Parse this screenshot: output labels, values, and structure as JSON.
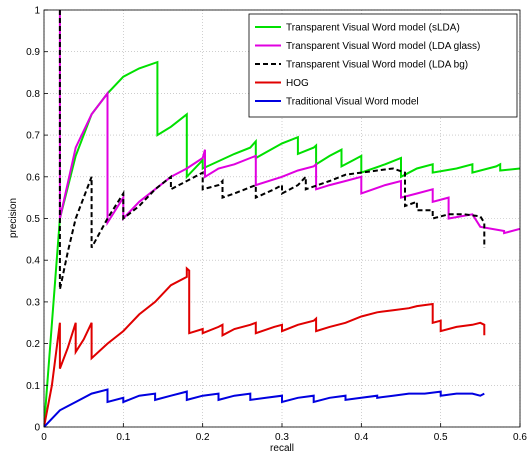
{
  "chart_data": {
    "type": "line",
    "title": "",
    "xlabel": "recall",
    "ylabel": "precision",
    "xlim": [
      0,
      0.6
    ],
    "ylim": [
      0,
      1
    ],
    "grid": true,
    "legend_position": "top-right",
    "x_ticks": [
      "0",
      "0.1",
      "0.2",
      "0.3",
      "0.4",
      "0.5",
      "0.6"
    ],
    "y_ticks": [
      "0",
      "0.1",
      "0.2",
      "0.3",
      "0.4",
      "0.5",
      "0.6",
      "0.7",
      "0.8",
      "0.9",
      "1"
    ],
    "series": [
      {
        "name": "Transparent Visual Word model (sLDA)",
        "color": "#00e000",
        "dash": "solid",
        "points": [
          [
            0,
            0
          ],
          [
            0.02,
            0.5
          ],
          [
            0.04,
            0.65
          ],
          [
            0.06,
            0.75
          ],
          [
            0.08,
            0.8
          ],
          [
            0.1,
            0.84
          ],
          [
            0.12,
            0.86
          ],
          [
            0.143,
            0.875
          ],
          [
            0.143,
            0.7
          ],
          [
            0.16,
            0.72
          ],
          [
            0.18,
            0.75
          ],
          [
            0.18,
            0.6
          ],
          [
            0.2,
            0.64
          ],
          [
            0.2,
            0.62
          ],
          [
            0.24,
            0.655
          ],
          [
            0.26,
            0.67
          ],
          [
            0.267,
            0.685
          ],
          [
            0.267,
            0.645
          ],
          [
            0.3,
            0.68
          ],
          [
            0.32,
            0.695
          ],
          [
            0.32,
            0.655
          ],
          [
            0.34,
            0.67
          ],
          [
            0.343,
            0.675
          ],
          [
            0.343,
            0.63
          ],
          [
            0.36,
            0.65
          ],
          [
            0.375,
            0.665
          ],
          [
            0.375,
            0.625
          ],
          [
            0.39,
            0.64
          ],
          [
            0.4,
            0.65
          ],
          [
            0.4,
            0.61
          ],
          [
            0.43,
            0.63
          ],
          [
            0.45,
            0.645
          ],
          [
            0.45,
            0.6
          ],
          [
            0.47,
            0.62
          ],
          [
            0.49,
            0.63
          ],
          [
            0.49,
            0.61
          ],
          [
            0.52,
            0.62
          ],
          [
            0.54,
            0.63
          ],
          [
            0.54,
            0.61
          ],
          [
            0.57,
            0.625
          ],
          [
            0.575,
            0.63
          ],
          [
            0.575,
            0.615
          ],
          [
            0.6,
            0.62
          ]
        ]
      },
      {
        "name": "Transparent Visual Word model (LDA glass)",
        "color": "#e000e0",
        "dash": "solid",
        "points": [
          [
            0.02,
            1.0
          ],
          [
            0.02,
            0.5
          ],
          [
            0.04,
            0.67
          ],
          [
            0.06,
            0.75
          ],
          [
            0.08,
            0.8
          ],
          [
            0.08,
            0.49
          ],
          [
            0.1,
            0.55
          ],
          [
            0.1,
            0.5
          ],
          [
            0.12,
            0.54
          ],
          [
            0.14,
            0.57
          ],
          [
            0.16,
            0.6
          ],
          [
            0.18,
            0.62
          ],
          [
            0.2,
            0.645
          ],
          [
            0.203,
            0.665
          ],
          [
            0.203,
            0.6
          ],
          [
            0.22,
            0.62
          ],
          [
            0.24,
            0.63
          ],
          [
            0.26,
            0.645
          ],
          [
            0.267,
            0.65
          ],
          [
            0.267,
            0.58
          ],
          [
            0.3,
            0.6
          ],
          [
            0.32,
            0.615
          ],
          [
            0.34,
            0.625
          ],
          [
            0.343,
            0.63
          ],
          [
            0.343,
            0.57
          ],
          [
            0.36,
            0.58
          ],
          [
            0.38,
            0.59
          ],
          [
            0.4,
            0.6
          ],
          [
            0.4,
            0.56
          ],
          [
            0.43,
            0.58
          ],
          [
            0.45,
            0.59
          ],
          [
            0.45,
            0.55
          ],
          [
            0.47,
            0.56
          ],
          [
            0.49,
            0.57
          ],
          [
            0.49,
            0.54
          ],
          [
            0.51,
            0.55
          ],
          [
            0.51,
            0.5
          ],
          [
            0.54,
            0.51
          ],
          [
            0.55,
            0.48
          ],
          [
            0.58,
            0.47
          ],
          [
            0.58,
            0.465
          ],
          [
            0.6,
            0.475
          ]
        ]
      },
      {
        "name": "Transparent Visual Word model (LDA bg)",
        "color": "#000000",
        "dash": "dashed",
        "points": [
          [
            0.02,
            1.0
          ],
          [
            0.02,
            0.33
          ],
          [
            0.03,
            0.42
          ],
          [
            0.04,
            0.5
          ],
          [
            0.06,
            0.6
          ],
          [
            0.06,
            0.43
          ],
          [
            0.08,
            0.5
          ],
          [
            0.1,
            0.56
          ],
          [
            0.1,
            0.5
          ],
          [
            0.12,
            0.53
          ],
          [
            0.14,
            0.57
          ],
          [
            0.16,
            0.6
          ],
          [
            0.16,
            0.57
          ],
          [
            0.18,
            0.59
          ],
          [
            0.2,
            0.61
          ],
          [
            0.2,
            0.57
          ],
          [
            0.22,
            0.58
          ],
          [
            0.225,
            0.59
          ],
          [
            0.225,
            0.55
          ],
          [
            0.24,
            0.56
          ],
          [
            0.26,
            0.575
          ],
          [
            0.267,
            0.58
          ],
          [
            0.267,
            0.55
          ],
          [
            0.29,
            0.57
          ],
          [
            0.3,
            0.58
          ],
          [
            0.3,
            0.56
          ],
          [
            0.32,
            0.58
          ],
          [
            0.33,
            0.6
          ],
          [
            0.33,
            0.57
          ],
          [
            0.345,
            0.58
          ],
          [
            0.36,
            0.59
          ],
          [
            0.38,
            0.605
          ],
          [
            0.4,
            0.61
          ],
          [
            0.42,
            0.615
          ],
          [
            0.44,
            0.62
          ],
          [
            0.455,
            0.61
          ],
          [
            0.455,
            0.53
          ],
          [
            0.47,
            0.54
          ],
          [
            0.47,
            0.52
          ],
          [
            0.49,
            0.52
          ],
          [
            0.49,
            0.5
          ],
          [
            0.51,
            0.51
          ],
          [
            0.53,
            0.51
          ],
          [
            0.55,
            0.505
          ],
          [
            0.555,
            0.49
          ],
          [
            0.555,
            0.43
          ]
        ]
      },
      {
        "name": "HOG",
        "color": "#e00000",
        "dash": "solid",
        "points": [
          [
            0,
            0
          ],
          [
            0.01,
            0.1
          ],
          [
            0.02,
            0.25
          ],
          [
            0.02,
            0.14
          ],
          [
            0.03,
            0.19
          ],
          [
            0.04,
            0.25
          ],
          [
            0.04,
            0.18
          ],
          [
            0.05,
            0.21
          ],
          [
            0.06,
            0.25
          ],
          [
            0.06,
            0.165
          ],
          [
            0.08,
            0.2
          ],
          [
            0.1,
            0.23
          ],
          [
            0.12,
            0.27
          ],
          [
            0.14,
            0.3
          ],
          [
            0.16,
            0.34
          ],
          [
            0.18,
            0.36
          ],
          [
            0.18,
            0.38
          ],
          [
            0.183,
            0.375
          ],
          [
            0.183,
            0.225
          ],
          [
            0.2,
            0.235
          ],
          [
            0.2,
            0.225
          ],
          [
            0.22,
            0.24
          ],
          [
            0.225,
            0.245
          ],
          [
            0.225,
            0.22
          ],
          [
            0.24,
            0.235
          ],
          [
            0.26,
            0.245
          ],
          [
            0.267,
            0.25
          ],
          [
            0.267,
            0.225
          ],
          [
            0.29,
            0.24
          ],
          [
            0.3,
            0.245
          ],
          [
            0.3,
            0.23
          ],
          [
            0.32,
            0.245
          ],
          [
            0.34,
            0.255
          ],
          [
            0.343,
            0.26
          ],
          [
            0.343,
            0.23
          ],
          [
            0.36,
            0.24
          ],
          [
            0.38,
            0.25
          ],
          [
            0.4,
            0.265
          ],
          [
            0.42,
            0.275
          ],
          [
            0.44,
            0.28
          ],
          [
            0.46,
            0.285
          ],
          [
            0.47,
            0.29
          ],
          [
            0.49,
            0.295
          ],
          [
            0.49,
            0.25
          ],
          [
            0.5,
            0.255
          ],
          [
            0.5,
            0.23
          ],
          [
            0.52,
            0.24
          ],
          [
            0.54,
            0.245
          ],
          [
            0.55,
            0.25
          ],
          [
            0.555,
            0.245
          ],
          [
            0.555,
            0.22
          ]
        ]
      },
      {
        "name": "Traditional Visual Word model",
        "color": "#0000e0",
        "dash": "solid",
        "points": [
          [
            0,
            0
          ],
          [
            0.02,
            0.04
          ],
          [
            0.03,
            0.05
          ],
          [
            0.04,
            0.06
          ],
          [
            0.06,
            0.08
          ],
          [
            0.08,
            0.09
          ],
          [
            0.08,
            0.06
          ],
          [
            0.1,
            0.07
          ],
          [
            0.1,
            0.06
          ],
          [
            0.12,
            0.075
          ],
          [
            0.14,
            0.08
          ],
          [
            0.14,
            0.065
          ],
          [
            0.16,
            0.075
          ],
          [
            0.18,
            0.085
          ],
          [
            0.18,
            0.065
          ],
          [
            0.2,
            0.075
          ],
          [
            0.22,
            0.08
          ],
          [
            0.22,
            0.065
          ],
          [
            0.24,
            0.075
          ],
          [
            0.26,
            0.08
          ],
          [
            0.26,
            0.065
          ],
          [
            0.28,
            0.07
          ],
          [
            0.3,
            0.075
          ],
          [
            0.3,
            0.06
          ],
          [
            0.32,
            0.07
          ],
          [
            0.34,
            0.075
          ],
          [
            0.34,
            0.06
          ],
          [
            0.36,
            0.07
          ],
          [
            0.38,
            0.075
          ],
          [
            0.38,
            0.065
          ],
          [
            0.4,
            0.07
          ],
          [
            0.42,
            0.075
          ],
          [
            0.42,
            0.07
          ],
          [
            0.44,
            0.075
          ],
          [
            0.46,
            0.08
          ],
          [
            0.48,
            0.08
          ],
          [
            0.5,
            0.085
          ],
          [
            0.5,
            0.075
          ],
          [
            0.52,
            0.08
          ],
          [
            0.54,
            0.08
          ],
          [
            0.55,
            0.075
          ],
          [
            0.555,
            0.08
          ]
        ]
      }
    ]
  }
}
